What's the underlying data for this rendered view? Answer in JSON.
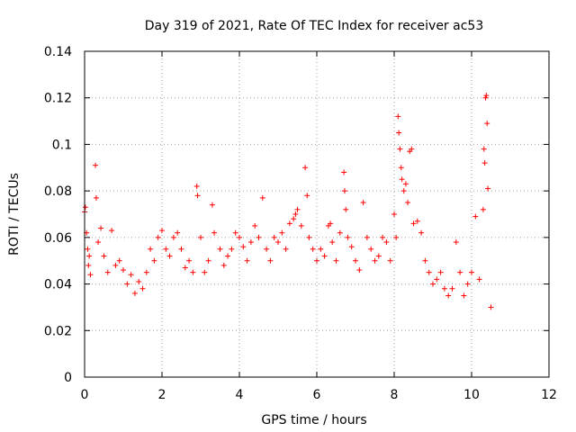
{
  "chart_data": {
    "type": "scatter",
    "title": "Day 319 of 2021, Rate Of TEC Index for receiver ac53",
    "xlabel": "GPS time / hours",
    "ylabel": "ROTI / TECUs",
    "xlim": [
      0,
      12
    ],
    "ylim": [
      0,
      0.14
    ],
    "x_ticks": [
      "0",
      "2",
      "4",
      "6",
      "8",
      "10",
      "12"
    ],
    "y_ticks": [
      "0",
      "0.02",
      "0.04",
      "0.06",
      "0.08",
      "0.1",
      "0.12",
      "0.14"
    ],
    "grid": true,
    "marker": "+",
    "color": "#ff0000",
    "series": [
      {
        "name": "ROTI",
        "points": [
          [
            0.0,
            0.071
          ],
          [
            0.02,
            0.073
          ],
          [
            0.05,
            0.062
          ],
          [
            0.08,
            0.055
          ],
          [
            0.1,
            0.048
          ],
          [
            0.12,
            0.052
          ],
          [
            0.15,
            0.044
          ],
          [
            0.28,
            0.091
          ],
          [
            0.3,
            0.077
          ],
          [
            0.35,
            0.058
          ],
          [
            0.42,
            0.064
          ],
          [
            0.5,
            0.052
          ],
          [
            0.6,
            0.045
          ],
          [
            0.7,
            0.063
          ],
          [
            0.8,
            0.048
          ],
          [
            0.9,
            0.05
          ],
          [
            1.0,
            0.046
          ],
          [
            1.1,
            0.04
          ],
          [
            1.2,
            0.044
          ],
          [
            1.3,
            0.036
          ],
          [
            1.4,
            0.041
          ],
          [
            1.5,
            0.038
          ],
          [
            1.6,
            0.045
          ],
          [
            1.7,
            0.055
          ],
          [
            1.8,
            0.05
          ],
          [
            1.9,
            0.06
          ],
          [
            2.0,
            0.063
          ],
          [
            2.1,
            0.055
          ],
          [
            2.2,
            0.052
          ],
          [
            2.3,
            0.06
          ],
          [
            2.4,
            0.062
          ],
          [
            2.5,
            0.055
          ],
          [
            2.6,
            0.047
          ],
          [
            2.7,
            0.05
          ],
          [
            2.8,
            0.045
          ],
          [
            2.9,
            0.082
          ],
          [
            2.92,
            0.078
          ],
          [
            3.0,
            0.06
          ],
          [
            3.1,
            0.045
          ],
          [
            3.2,
            0.05
          ],
          [
            3.3,
            0.074
          ],
          [
            3.35,
            0.062
          ],
          [
            3.5,
            0.055
          ],
          [
            3.6,
            0.048
          ],
          [
            3.7,
            0.052
          ],
          [
            3.8,
            0.055
          ],
          [
            3.9,
            0.062
          ],
          [
            4.0,
            0.06
          ],
          [
            4.1,
            0.056
          ],
          [
            4.2,
            0.05
          ],
          [
            4.3,
            0.058
          ],
          [
            4.4,
            0.065
          ],
          [
            4.5,
            0.06
          ],
          [
            4.6,
            0.077
          ],
          [
            4.7,
            0.055
          ],
          [
            4.8,
            0.05
          ],
          [
            4.9,
            0.06
          ],
          [
            5.0,
            0.058
          ],
          [
            5.1,
            0.062
          ],
          [
            5.2,
            0.055
          ],
          [
            5.3,
            0.066
          ],
          [
            5.4,
            0.068
          ],
          [
            5.45,
            0.07
          ],
          [
            5.5,
            0.072
          ],
          [
            5.6,
            0.065
          ],
          [
            5.7,
            0.09
          ],
          [
            5.75,
            0.078
          ],
          [
            5.8,
            0.06
          ],
          [
            5.9,
            0.055
          ],
          [
            6.0,
            0.05
          ],
          [
            6.1,
            0.055
          ],
          [
            6.2,
            0.052
          ],
          [
            6.3,
            0.065
          ],
          [
            6.35,
            0.066
          ],
          [
            6.4,
            0.058
          ],
          [
            6.5,
            0.05
          ],
          [
            6.6,
            0.062
          ],
          [
            6.7,
            0.088
          ],
          [
            6.72,
            0.08
          ],
          [
            6.75,
            0.072
          ],
          [
            6.8,
            0.06
          ],
          [
            6.9,
            0.056
          ],
          [
            7.0,
            0.05
          ],
          [
            7.1,
            0.046
          ],
          [
            7.2,
            0.075
          ],
          [
            7.3,
            0.06
          ],
          [
            7.4,
            0.055
          ],
          [
            7.5,
            0.05
          ],
          [
            7.6,
            0.052
          ],
          [
            7.7,
            0.06
          ],
          [
            7.8,
            0.058
          ],
          [
            7.9,
            0.05
          ],
          [
            8.0,
            0.07
          ],
          [
            8.05,
            0.06
          ],
          [
            8.1,
            0.112
          ],
          [
            8.12,
            0.105
          ],
          [
            8.15,
            0.098
          ],
          [
            8.18,
            0.09
          ],
          [
            8.2,
            0.085
          ],
          [
            8.25,
            0.08
          ],
          [
            8.3,
            0.083
          ],
          [
            8.35,
            0.075
          ],
          [
            8.4,
            0.097
          ],
          [
            8.45,
            0.098
          ],
          [
            8.5,
            0.066
          ],
          [
            8.6,
            0.067
          ],
          [
            8.7,
            0.062
          ],
          [
            8.8,
            0.05
          ],
          [
            8.9,
            0.045
          ],
          [
            9.0,
            0.04
          ],
          [
            9.1,
            0.042
          ],
          [
            9.2,
            0.045
          ],
          [
            9.3,
            0.038
          ],
          [
            9.4,
            0.035
          ],
          [
            9.5,
            0.038
          ],
          [
            9.6,
            0.058
          ],
          [
            9.7,
            0.045
          ],
          [
            9.8,
            0.035
          ],
          [
            9.9,
            0.04
          ],
          [
            10.0,
            0.045
          ],
          [
            10.1,
            0.069
          ],
          [
            10.2,
            0.042
          ],
          [
            10.3,
            0.072
          ],
          [
            10.32,
            0.098
          ],
          [
            10.34,
            0.092
          ],
          [
            10.36,
            0.12
          ],
          [
            10.38,
            0.121
          ],
          [
            10.4,
            0.109
          ],
          [
            10.42,
            0.081
          ],
          [
            10.5,
            0.03
          ]
        ]
      }
    ]
  }
}
